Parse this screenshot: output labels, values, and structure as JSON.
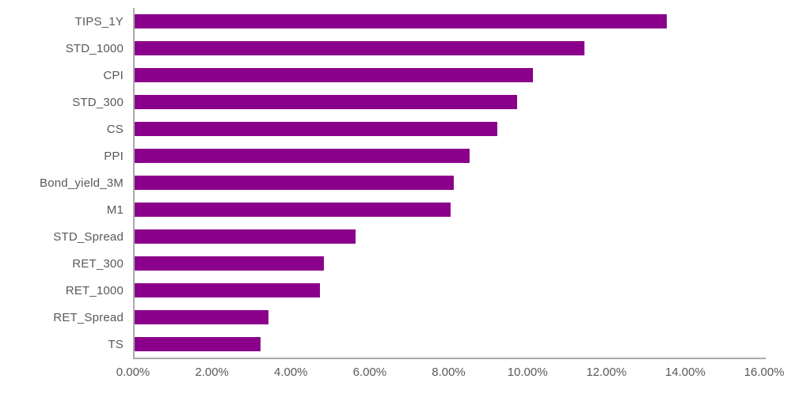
{
  "chart_data": {
    "type": "bar",
    "orientation": "horizontal",
    "title": "",
    "xlabel": "",
    "ylabel": "",
    "categories": [
      "TIPS_1Y",
      "STD_1000",
      "CPI",
      "STD_300",
      "CS",
      "PPI",
      "Bond_yield_3M",
      "M1",
      "STD_Spread",
      "RET_300",
      "RET_1000",
      "RET_Spread",
      "TS"
    ],
    "values": [
      13.5,
      11.4,
      10.1,
      9.7,
      9.2,
      8.5,
      8.1,
      8.0,
      5.6,
      4.8,
      4.7,
      3.4,
      3.2
    ],
    "value_unit": "%",
    "xlim": [
      0,
      16
    ],
    "x_tick_labels": [
      "0.00%",
      "2.00%",
      "4.00%",
      "6.00%",
      "8.00%",
      "10.00%",
      "12.00%",
      "14.00%",
      "16.00%"
    ],
    "x_tick_values": [
      0,
      2,
      4,
      6,
      8,
      10,
      12,
      14,
      16
    ],
    "grid": false,
    "legend": false,
    "colors": {
      "bar": "#8b008b",
      "axis": "#a9a9a9",
      "text": "#595959",
      "background": "#ffffff"
    }
  }
}
